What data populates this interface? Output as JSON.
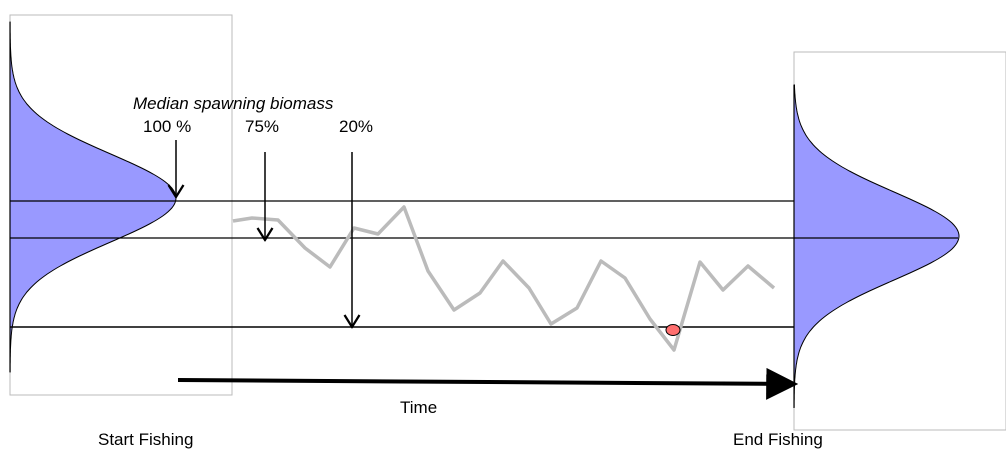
{
  "title": "Median spawning biomass",
  "markers": {
    "m100": "100 %",
    "m75": "75%",
    "m20": "20%"
  },
  "time_label": "Time",
  "start_label": "Start Fishing",
  "end_label": "End Fishing",
  "colors": {
    "distribution_fill": "#9999ff",
    "trajectory": "#bbbbbb",
    "event_dot": "#ff6f6f",
    "box_border": "#bbbbbb",
    "line": "#000000"
  },
  "icons": [
    "down-arrow-icon",
    "right-arrow-icon",
    "red-dot-icon"
  ]
}
